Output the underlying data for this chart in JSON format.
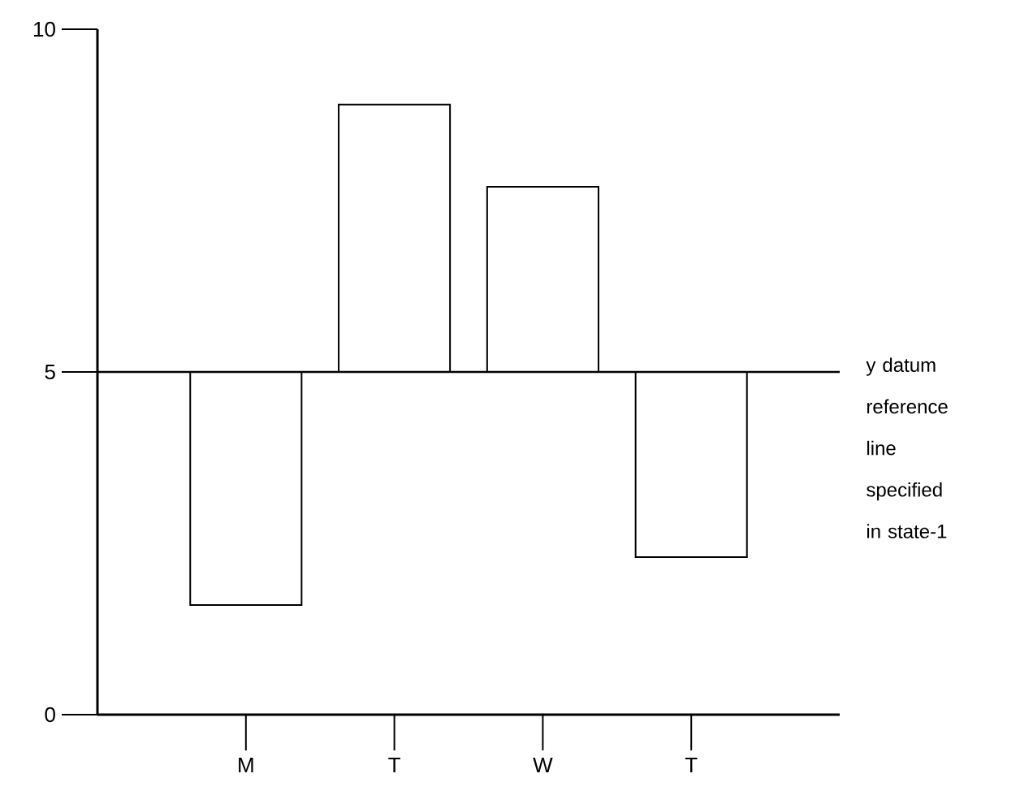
{
  "chart_data": {
    "type": "bar",
    "categories": [
      "M",
      "T",
      "W",
      "T"
    ],
    "base": [
      5,
      5,
      5,
      5
    ],
    "values": [
      -3.4,
      3.9,
      2.7,
      -2.7
    ],
    "color": "#ffffff",
    "ylim": [
      0,
      10
    ],
    "yticks": [
      0,
      5,
      10
    ],
    "grid": false,
    "ref_lines": [
      {
        "axis": "y",
        "value": 5,
        "label": "y datum reference line specified in state-1",
        "color": "#000000"
      }
    ]
  }
}
